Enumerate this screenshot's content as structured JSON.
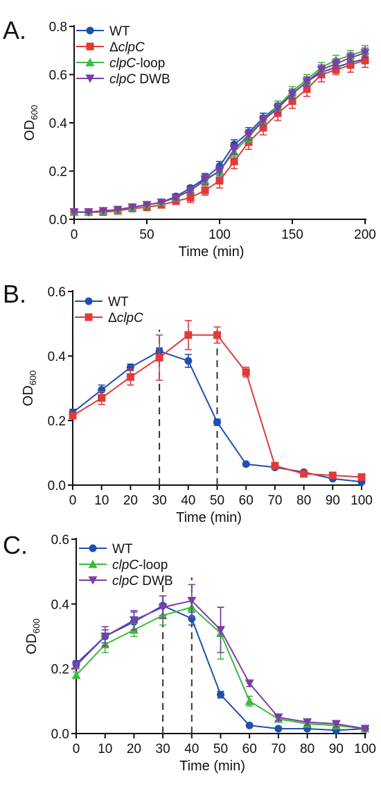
{
  "colors": {
    "WT": "#1f4fb0",
    "clpC": "#e03a3a",
    "loop": "#3cba3c",
    "dwb": "#7a3fa6"
  },
  "chart_data": [
    {
      "panel": "A.",
      "type": "line",
      "xlabel": "Time (min)",
      "ylabel_main": "OD",
      "ylabel_sub": "600",
      "xlim": [
        0,
        200
      ],
      "ylim": [
        0,
        0.8
      ],
      "xticks": [
        0,
        50,
        100,
        150,
        200
      ],
      "yticks": [
        0.0,
        0.2,
        0.4,
        0.6,
        0.8
      ],
      "ytick_labels": [
        "0.0",
        "0.2",
        "0.4",
        "0.6",
        "0.8"
      ],
      "x": [
        0,
        10,
        20,
        30,
        40,
        50,
        60,
        70,
        80,
        90,
        100,
        110,
        120,
        130,
        140,
        150,
        160,
        170,
        180,
        190,
        200
      ],
      "legend_position": "top-left",
      "series": [
        {
          "legend_prefix": "",
          "legend_italic": "",
          "legend_suffix": "WT",
          "color_key": "WT",
          "marker": "circle",
          "values": [
            0.03,
            0.03,
            0.035,
            0.04,
            0.05,
            0.06,
            0.07,
            0.095,
            0.13,
            0.17,
            0.22,
            0.31,
            0.36,
            0.42,
            0.47,
            0.52,
            0.57,
            0.61,
            0.63,
            0.65,
            0.665
          ],
          "errors": [
            0,
            0,
            0,
            0,
            0,
            0,
            0,
            0.01,
            0.01,
            0.02,
            0.02,
            0.02,
            0.02,
            0.02,
            0.02,
            0.02,
            0.02,
            0.02,
            0.02,
            0.02,
            0.02
          ]
        },
        {
          "legend_prefix": "Δ",
          "legend_italic": "clpC",
          "legend_suffix": "",
          "color_key": "clpC",
          "marker": "square",
          "values": [
            0.03,
            0.03,
            0.03,
            0.035,
            0.045,
            0.05,
            0.06,
            0.075,
            0.09,
            0.12,
            0.16,
            0.24,
            0.32,
            0.38,
            0.44,
            0.49,
            0.54,
            0.6,
            0.62,
            0.64,
            0.66
          ],
          "errors": [
            0,
            0,
            0,
            0,
            0,
            0.01,
            0.01,
            0.01,
            0.02,
            0.02,
            0.03,
            0.03,
            0.03,
            0.03,
            0.03,
            0.03,
            0.03,
            0.03,
            0.02,
            0.03,
            0.03
          ]
        },
        {
          "legend_prefix": "",
          "legend_italic": "clpC",
          "legend_suffix": "-loop",
          "color_key": "loop",
          "marker": "triangle-up",
          "values": [
            0.03,
            0.03,
            0.035,
            0.04,
            0.05,
            0.06,
            0.07,
            0.09,
            0.12,
            0.16,
            0.2,
            0.28,
            0.34,
            0.41,
            0.47,
            0.53,
            0.58,
            0.63,
            0.66,
            0.68,
            0.7
          ],
          "errors": [
            0,
            0,
            0,
            0,
            0,
            0,
            0,
            0.01,
            0.01,
            0.02,
            0.02,
            0.02,
            0.02,
            0.02,
            0.02,
            0.02,
            0.02,
            0.02,
            0.02,
            0.02,
            0.02
          ]
        },
        {
          "legend_prefix": "",
          "legend_italic": "clpC",
          "legend_suffix": " DWB",
          "color_key": "dwb",
          "marker": "triangle-down",
          "values": [
            0.03,
            0.03,
            0.035,
            0.04,
            0.05,
            0.06,
            0.07,
            0.09,
            0.12,
            0.165,
            0.2,
            0.29,
            0.35,
            0.41,
            0.46,
            0.52,
            0.57,
            0.62,
            0.645,
            0.67,
            0.69
          ],
          "errors": [
            0,
            0,
            0,
            0,
            0,
            0,
            0,
            0.01,
            0.01,
            0.02,
            0.02,
            0.02,
            0.02,
            0.02,
            0.02,
            0.02,
            0.02,
            0.02,
            0.02,
            0.02,
            0.02
          ]
        }
      ],
      "dashed_x": []
    },
    {
      "panel": "B.",
      "type": "line",
      "xlabel": "Time (min)",
      "ylabel_main": "OD",
      "ylabel_sub": "600",
      "xlim": [
        0,
        100
      ],
      "ylim": [
        0,
        0.6
      ],
      "xticks": [
        0,
        10,
        20,
        30,
        40,
        50,
        60,
        70,
        80,
        90,
        100
      ],
      "yticks": [
        0.0,
        0.2,
        0.4,
        0.6
      ],
      "ytick_labels": [
        "0.0",
        "0.2",
        "0.4",
        "0.6"
      ],
      "x": [
        0,
        10,
        20,
        30,
        40,
        50,
        60,
        70,
        80,
        90,
        100
      ],
      "legend_position": "top-left",
      "series": [
        {
          "legend_prefix": "",
          "legend_italic": "",
          "legend_suffix": "WT",
          "color_key": "WT",
          "marker": "circle",
          "values": [
            0.225,
            0.295,
            0.365,
            0.415,
            0.385,
            0.195,
            0.065,
            0.055,
            0.04,
            0.02,
            0.01
          ],
          "errors": [
            0.01,
            0.015,
            0.01,
            0.01,
            0.02,
            0.01,
            0,
            0,
            0,
            0,
            0
          ]
        },
        {
          "legend_prefix": "Δ",
          "legend_italic": "clpC",
          "legend_suffix": "",
          "color_key": "clpC",
          "marker": "square",
          "values": [
            0.215,
            0.27,
            0.335,
            0.395,
            0.465,
            0.465,
            0.35,
            0.06,
            0.035,
            0.03,
            0.025
          ],
          "errors": [
            0.01,
            0.02,
            0.025,
            0.07,
            0.045,
            0.025,
            0.015,
            0.01,
            0.005,
            0.005,
            0.005
          ]
        }
      ],
      "dashed_x": [
        30,
        50
      ]
    },
    {
      "panel": "C.",
      "type": "line",
      "xlabel": "Time (min)",
      "ylabel_main": "OD",
      "ylabel_sub": "600",
      "xlim": [
        0,
        100
      ],
      "ylim": [
        0,
        0.6
      ],
      "xticks": [
        0,
        10,
        20,
        30,
        40,
        50,
        60,
        70,
        80,
        90,
        100
      ],
      "yticks": [
        0.0,
        0.2,
        0.4,
        0.6
      ],
      "ytick_labels": [
        "0.0",
        "0.2",
        "0.4",
        "0.6"
      ],
      "x": [
        0,
        10,
        20,
        30,
        40,
        50,
        60,
        70,
        80,
        90,
        100
      ],
      "legend_position": "top-left",
      "series": [
        {
          "legend_prefix": "",
          "legend_italic": "",
          "legend_suffix": "WT",
          "color_key": "WT",
          "marker": "circle",
          "values": [
            0.215,
            0.3,
            0.345,
            0.395,
            0.355,
            0.12,
            0.025,
            0.015,
            0.015,
            0.01,
            0.015
          ],
          "errors": [
            0.01,
            0.02,
            0.03,
            0.03,
            0.02,
            0.01,
            0,
            0,
            0,
            0,
            0
          ]
        },
        {
          "legend_prefix": "",
          "legend_italic": "clpC",
          "legend_suffix": "-loop",
          "color_key": "loop",
          "marker": "triangle-up",
          "values": [
            0.18,
            0.275,
            0.32,
            0.365,
            0.39,
            0.31,
            0.1,
            0.045,
            0.03,
            0.025,
            0.015
          ],
          "errors": [
            0.01,
            0.025,
            0.02,
            0.03,
            0.03,
            0.08,
            0.015,
            0.01,
            0.01,
            0.01,
            0.005
          ]
        },
        {
          "legend_prefix": "",
          "legend_italic": "clpC",
          "legend_suffix": " DWB",
          "color_key": "dwb",
          "marker": "triangle-down",
          "values": [
            0.21,
            0.3,
            0.35,
            0.39,
            0.41,
            0.32,
            0.155,
            0.05,
            0.035,
            0.03,
            0.015
          ],
          "errors": [
            0.01,
            0.03,
            0.03,
            0.035,
            0.05,
            0.07,
            0.01,
            0.01,
            0.01,
            0.01,
            0.005
          ]
        }
      ],
      "dashed_x": [
        30,
        40
      ]
    }
  ]
}
